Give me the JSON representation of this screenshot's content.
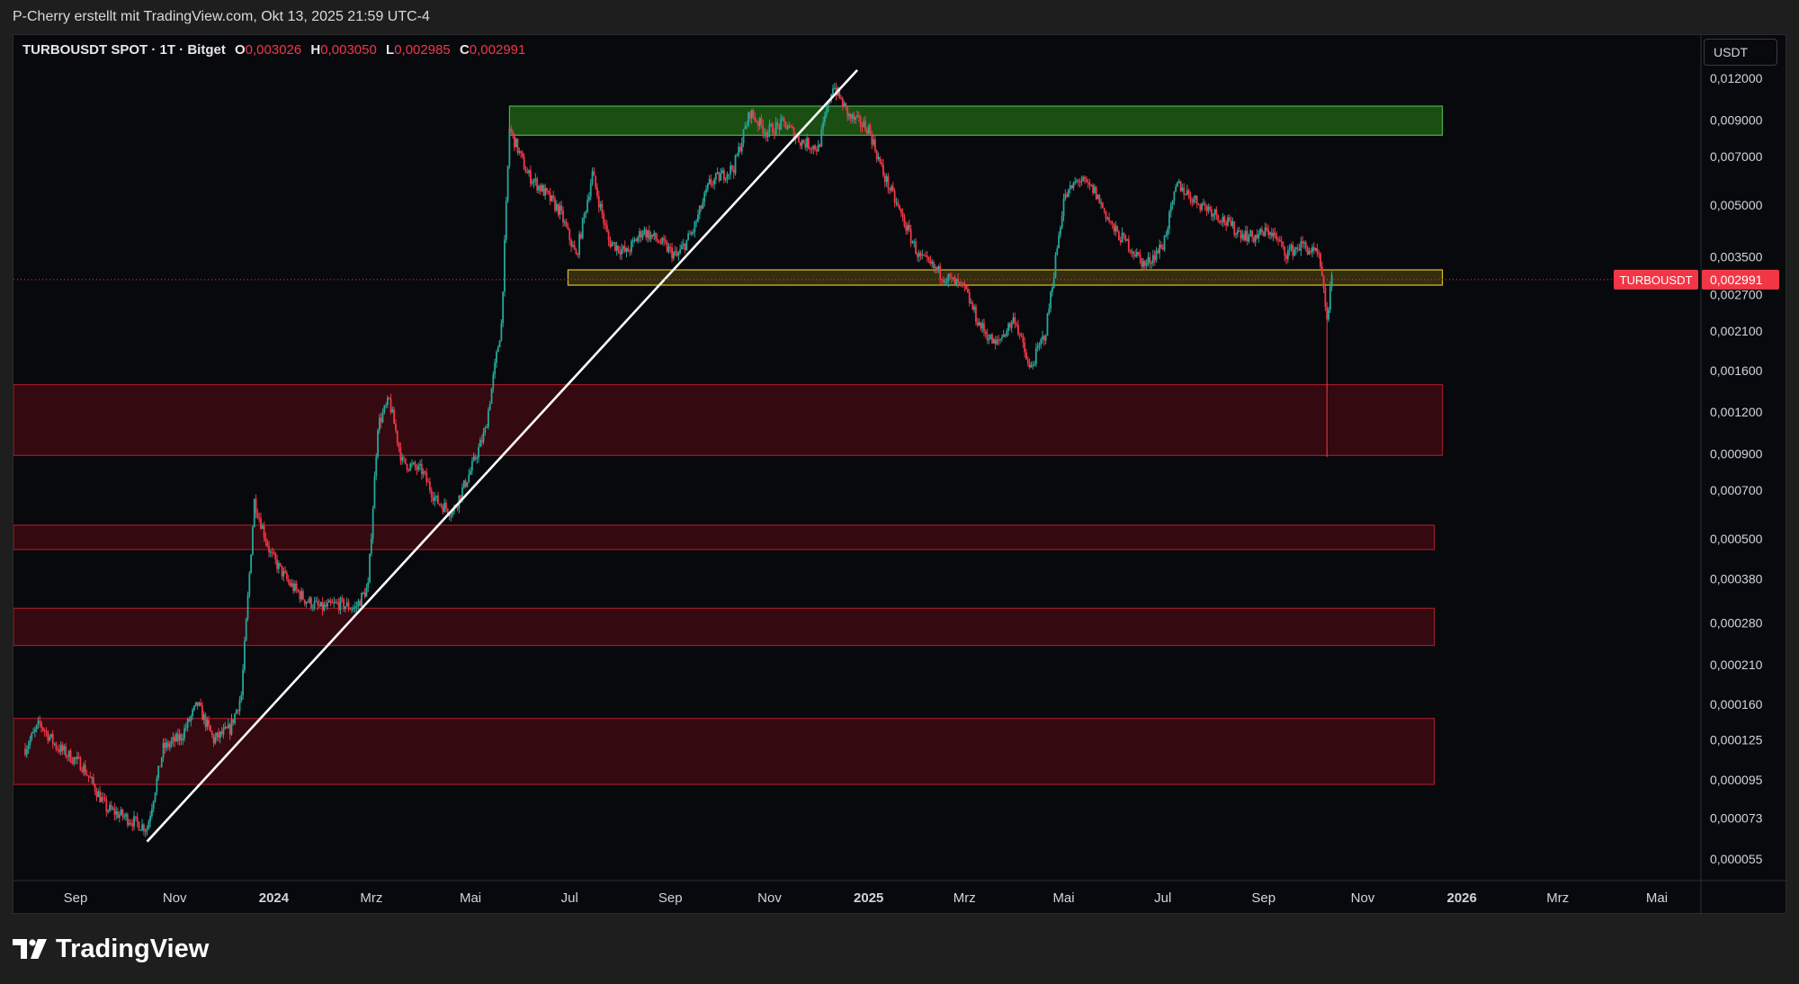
{
  "header": {
    "text": "P-Cherry erstellt mit TradingView.com, Okt 13, 2025 21:59 UTC-4"
  },
  "legend": {
    "symbol": "TURBOUSDT SPOT · 1T · Bitget",
    "o_key": "O",
    "o": "0,003026",
    "h_key": "H",
    "h": "0,003050",
    "l_key": "L",
    "l": "0,002985",
    "c_key": "C",
    "c": "0,002991"
  },
  "currency": "USDT",
  "brand": "TradingView",
  "colors": {
    "up": "#26a69a",
    "down": "#f23645",
    "background": "#08090d",
    "resistance_zone": "#1e5a14",
    "pivot_zone": "#5a4a14",
    "support_zone": "#3a0a10",
    "trendline": "#ffffff"
  },
  "chart_data": {
    "type": "candlestick",
    "scale": "log",
    "y_axis_ticks": [
      "0,012000",
      "0,009000",
      "0,007000",
      "0,005000",
      "0,003500",
      "0,002700",
      "0,002100",
      "0,001600",
      "0,001200",
      "0,000900",
      "0,000700",
      "0,000500",
      "0,000380",
      "0,000280",
      "0,000210",
      "0,000160",
      "0,000125",
      "0,000095",
      "0,000073",
      "0,000055"
    ],
    "x_axis_ticks": [
      {
        "label": "Sep",
        "bold": false
      },
      {
        "label": "Nov",
        "bold": false
      },
      {
        "label": "2024",
        "bold": true
      },
      {
        "label": "Mrz",
        "bold": false
      },
      {
        "label": "Mai",
        "bold": false
      },
      {
        "label": "Jul",
        "bold": false
      },
      {
        "label": "Sep",
        "bold": false
      },
      {
        "label": "Nov",
        "bold": false
      },
      {
        "label": "2025",
        "bold": true
      },
      {
        "label": "Mrz",
        "bold": false
      },
      {
        "label": "Mai",
        "bold": false
      },
      {
        "label": "Jul",
        "bold": false
      },
      {
        "label": "Sep",
        "bold": false
      },
      {
        "label": "Nov",
        "bold": false
      },
      {
        "label": "2026",
        "bold": true
      },
      {
        "label": "Mrz",
        "bold": false
      },
      {
        "label": "Mai",
        "bold": false
      }
    ],
    "x_axis_dates": [
      "2023-09-01",
      "2023-11-01",
      "2024-01-01",
      "2024-03-01",
      "2024-05-01",
      "2024-07-01",
      "2024-09-01",
      "2024-11-01",
      "2025-01-01",
      "2025-03-01",
      "2025-05-01",
      "2025-07-01",
      "2025-09-01",
      "2025-11-01",
      "2026-01-01",
      "2026-03-01",
      "2026-05-01"
    ],
    "price_path": [
      [
        "2023-08-01",
        0.000118
      ],
      [
        "2023-08-10",
        0.00014
      ],
      [
        "2023-08-20",
        0.00012
      ],
      [
        "2023-09-05",
        0.000105
      ],
      [
        "2023-09-20",
        7.8e-05
      ],
      [
        "2023-10-05",
        7.2e-05
      ],
      [
        "2023-10-15",
        6.8e-05
      ],
      [
        "2023-10-25",
        0.000118
      ],
      [
        "2023-11-05",
        0.000128
      ],
      [
        "2023-11-15",
        0.00016
      ],
      [
        "2023-11-25",
        0.000125
      ],
      [
        "2023-12-05",
        0.000135
      ],
      [
        "2023-12-12",
        0.00017
      ],
      [
        "2023-12-20",
        0.00065
      ],
      [
        "2023-12-30",
        0.00045
      ],
      [
        "2024-01-10",
        0.00037
      ],
      [
        "2024-01-20",
        0.00033
      ],
      [
        "2024-01-30",
        0.00031
      ],
      [
        "2024-02-10",
        0.00032
      ],
      [
        "2024-02-20",
        0.00031
      ],
      [
        "2024-02-28",
        0.00036
      ],
      [
        "2024-03-05",
        0.0011
      ],
      [
        "2024-03-12",
        0.0013
      ],
      [
        "2024-03-20",
        0.00085
      ],
      [
        "2024-04-01",
        0.0008
      ],
      [
        "2024-04-10",
        0.00065
      ],
      [
        "2024-04-20",
        0.0006
      ],
      [
        "2024-05-01",
        0.0008
      ],
      [
        "2024-05-10",
        0.00105
      ],
      [
        "2024-05-20",
        0.0022
      ],
      [
        "2024-05-25",
        0.0085
      ],
      [
        "2024-06-05",
        0.0062
      ],
      [
        "2024-06-15",
        0.0055
      ],
      [
        "2024-06-25",
        0.0048
      ],
      [
        "2024-07-05",
        0.0035
      ],
      [
        "2024-07-15",
        0.0062
      ],
      [
        "2024-07-25",
        0.0039
      ],
      [
        "2024-08-05",
        0.0036
      ],
      [
        "2024-08-15",
        0.0042
      ],
      [
        "2024-08-25",
        0.0039
      ],
      [
        "2024-09-05",
        0.0035
      ],
      [
        "2024-09-15",
        0.0042
      ],
      [
        "2024-09-25",
        0.0058
      ],
      [
        "2024-10-10",
        0.0065
      ],
      [
        "2024-10-20",
        0.0095
      ],
      [
        "2024-10-30",
        0.0083
      ],
      [
        "2024-11-10",
        0.0088
      ],
      [
        "2024-11-20",
        0.0078
      ],
      [
        "2024-12-01",
        0.0074
      ],
      [
        "2024-12-10",
        0.0115
      ],
      [
        "2024-12-20",
        0.0092
      ],
      [
        "2025-01-01",
        0.0085
      ],
      [
        "2025-01-10",
        0.0062
      ],
      [
        "2025-01-20",
        0.0048
      ],
      [
        "2025-02-01",
        0.0035
      ],
      [
        "2025-02-15",
        0.0031
      ],
      [
        "2025-03-01",
        0.0028
      ],
      [
        "2025-03-10",
        0.0022
      ],
      [
        "2025-03-20",
        0.0019
      ],
      [
        "2025-04-01",
        0.0023
      ],
      [
        "2025-04-10",
        0.0016
      ],
      [
        "2025-04-20",
        0.0021
      ],
      [
        "2025-05-01",
        0.0052
      ],
      [
        "2025-05-10",
        0.006
      ],
      [
        "2025-05-20",
        0.0055
      ],
      [
        "2025-06-01",
        0.0042
      ],
      [
        "2025-06-10",
        0.0038
      ],
      [
        "2025-06-20",
        0.0033
      ],
      [
        "2025-07-01",
        0.0038
      ],
      [
        "2025-07-10",
        0.0058
      ],
      [
        "2025-07-20",
        0.0052
      ],
      [
        "2025-08-01",
        0.0048
      ],
      [
        "2025-08-15",
        0.0042
      ],
      [
        "2025-08-25",
        0.004
      ],
      [
        "2025-09-05",
        0.0042
      ],
      [
        "2025-09-15",
        0.0036
      ],
      [
        "2025-09-25",
        0.0038
      ],
      [
        "2025-10-05",
        0.0035
      ],
      [
        "2025-10-10",
        0.0023
      ],
      [
        "2025-10-13",
        0.002991
      ]
    ],
    "zones": [
      {
        "type": "resistance",
        "from": "2024-05-25",
        "to": "2025-12-20",
        "low": 0.0081,
        "high": 0.0099
      },
      {
        "type": "pivot",
        "from": "2024-06-30",
        "to": "2025-12-20",
        "low": 0.00288,
        "high": 0.0032
      },
      {
        "type": "support",
        "from": "2023-07-20",
        "to": "2025-12-20",
        "low": 0.00089,
        "high": 0.00145
      },
      {
        "type": "support",
        "from": "2023-07-20",
        "to": "2025-12-15",
        "low": 0.000465,
        "high": 0.00055
      },
      {
        "type": "support",
        "from": "2023-07-20",
        "to": "2025-12-15",
        "low": 0.00024,
        "high": 0.00031
      },
      {
        "type": "support",
        "from": "2023-07-20",
        "to": "2025-12-15",
        "low": 9.2e-05,
        "high": 0.000145
      }
    ],
    "trendline": {
      "from": [
        "2023-10-15",
        6.2e-05
      ],
      "to": [
        "2024-12-25",
        0.0127
      ]
    },
    "last_price": {
      "value": 0.002991,
      "label": "0,002991",
      "symbol_label": "TURBOUSDT"
    },
    "wick_low": {
      "date": "2025-10-10",
      "value": 0.00088
    }
  }
}
